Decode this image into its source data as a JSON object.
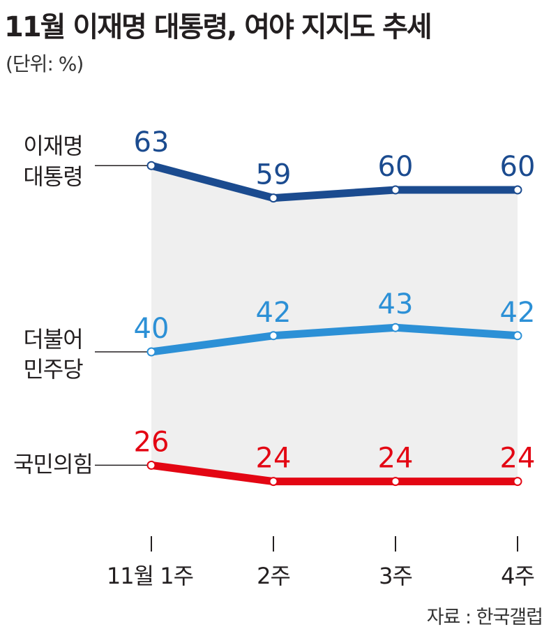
{
  "title": "11월 이재명 대통령, 여야 지지도 추세",
  "unit": "(단위: %)",
  "source": "자료 : 한국갤럽",
  "chart_data": {
    "type": "line",
    "title": "11월 이재명 대통령, 여야 지지도 추세",
    "unit": "(단위: %)",
    "categories": [
      "11월 1주",
      "2주",
      "3주",
      "4주"
    ],
    "series": [
      {
        "name": "이재명 대통령",
        "label_lines": [
          "이재명",
          "대통령"
        ],
        "values": [
          63,
          59,
          60,
          60
        ],
        "color": "#1b4b8f"
      },
      {
        "name": "더불어민주당",
        "label_lines": [
          "더불어",
          "민주당"
        ],
        "values": [
          40,
          42,
          43,
          42
        ],
        "color": "#2c90d6"
      },
      {
        "name": "국민의힘",
        "label_lines": [
          "국민의힘"
        ],
        "values": [
          26,
          24,
          24,
          24
        ],
        "color": "#e30613"
      }
    ],
    "band_fill": "#efefef",
    "grid": false
  }
}
